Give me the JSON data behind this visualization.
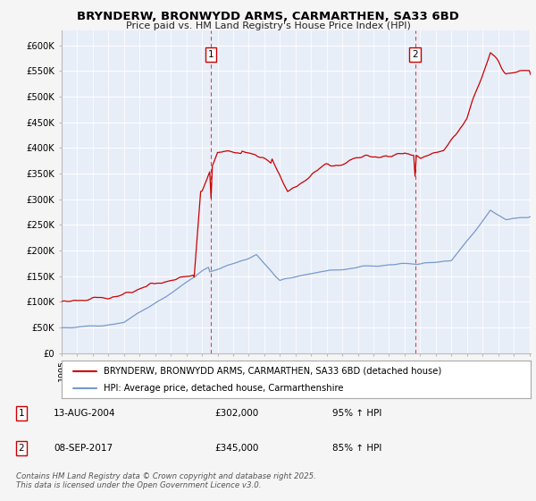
{
  "title_line1": "BRYNDERW, BRONWYDD ARMS, CARMARTHEN, SA33 6BD",
  "title_line2": "Price paid vs. HM Land Registry's House Price Index (HPI)",
  "background_color": "#f5f5f5",
  "plot_bg_color": "#e8eef8",
  "red_line_color": "#cc0000",
  "blue_line_color": "#7799cc",
  "legend_red": "BRYNDERW, BRONWYDD ARMS, CARMARTHEN, SA33 6BD (detached house)",
  "legend_blue": "HPI: Average price, detached house, Carmarthenshire",
  "footer": "Contains HM Land Registry data © Crown copyright and database right 2025.\nThis data is licensed under the Open Government Licence v3.0.",
  "ylim": [
    0,
    630000
  ],
  "yticks": [
    0,
    50000,
    100000,
    150000,
    200000,
    250000,
    300000,
    350000,
    400000,
    450000,
    500000,
    550000,
    600000
  ],
  "ytick_labels": [
    "£0",
    "£50K",
    "£100K",
    "£150K",
    "£200K",
    "£250K",
    "£300K",
    "£350K",
    "£400K",
    "£450K",
    "£500K",
    "£550K",
    "£600K"
  ],
  "start_year": 1995,
  "end_year": 2025,
  "m1_year": 2004,
  "m1_month": 8,
  "m1_price": 302000,
  "m2_year": 2017,
  "m2_month": 9,
  "m2_price": 345000,
  "annot1_date": "13-AUG-2004",
  "annot1_price": "£302,000",
  "annot1_hpi": "95% ↑ HPI",
  "annot2_date": "08-SEP-2017",
  "annot2_price": "£345,000",
  "annot2_hpi": "85% ↑ HPI"
}
